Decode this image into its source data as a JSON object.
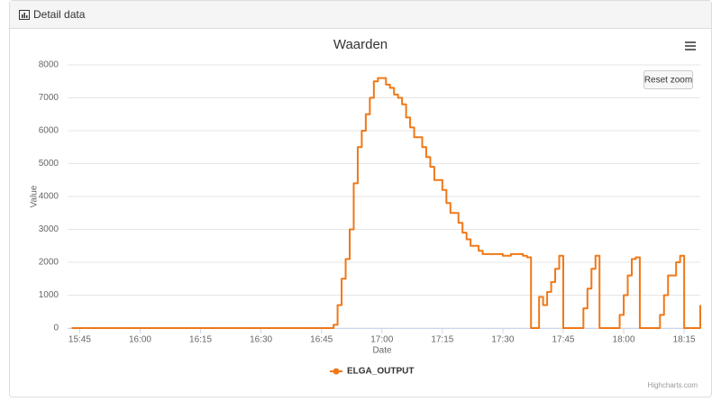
{
  "panel_title": "Detail data",
  "reset_button": "Reset zoom",
  "credits": "Highcharts.com",
  "chart_data": {
    "type": "line",
    "step": true,
    "title": "Waarden",
    "x_label": "Date",
    "y_label": "Value",
    "xlim": [
      "15:42",
      "18:19"
    ],
    "ylim": [
      0,
      8000
    ],
    "xticks": [
      "15:45",
      "16:00",
      "16:15",
      "16:30",
      "16:45",
      "17:00",
      "17:15",
      "17:30",
      "17:45",
      "18:00",
      "18:15"
    ],
    "yticks": [
      0,
      1000,
      2000,
      3000,
      4000,
      5000,
      6000,
      7000,
      8000
    ],
    "grid": true,
    "x": [
      "15:43",
      "16:47",
      "16:48",
      "16:49",
      "16:50",
      "16:51",
      "16:52",
      "16:53",
      "16:54",
      "16:55",
      "16:56",
      "16:57",
      "16:58",
      "16:59",
      "17:01",
      "17:02",
      "17:03",
      "17:04",
      "17:05",
      "17:06",
      "17:07",
      "17:08",
      "17:10",
      "17:11",
      "17:12",
      "17:13",
      "17:15",
      "17:16",
      "17:17",
      "17:19",
      "17:20",
      "17:21",
      "17:22",
      "17:24",
      "17:25",
      "17:28",
      "17:30",
      "17:32",
      "17:35",
      "17:36",
      "17:37",
      "17:39",
      "17:40",
      "17:41",
      "17:42",
      "17:43",
      "17:44",
      "17:45",
      "17:49",
      "17:50",
      "17:51",
      "17:52",
      "17:53",
      "17:54",
      "17:58",
      "17:59",
      "18:00",
      "18:01",
      "18:02",
      "18:03",
      "18:04",
      "18:08",
      "18:09",
      "18:10",
      "18:11",
      "18:13",
      "18:14",
      "18:15",
      "18:18",
      "18:19"
    ],
    "series": [
      {
        "name": "ELGA_OUTPUT",
        "color": "#f07818",
        "values": [
          0,
          0,
          100,
          700,
          1500,
          2100,
          3000,
          4400,
          5500,
          6000,
          6500,
          7000,
          7500,
          7600,
          7400,
          7300,
          7100,
          7000,
          6800,
          6400,
          6100,
          5800,
          5500,
          5200,
          4900,
          4500,
          4200,
          3800,
          3500,
          3200,
          2900,
          2700,
          2500,
          2350,
          2250,
          2250,
          2200,
          2250,
          2200,
          2150,
          0,
          950,
          700,
          1100,
          1400,
          1800,
          2200,
          0,
          0,
          600,
          1200,
          1800,
          2200,
          0,
          0,
          400,
          1000,
          1600,
          2100,
          2150,
          0,
          0,
          400,
          1000,
          1600,
          2000,
          2200,
          0,
          0,
          700
        ]
      }
    ],
    "legend": "bottom"
  }
}
